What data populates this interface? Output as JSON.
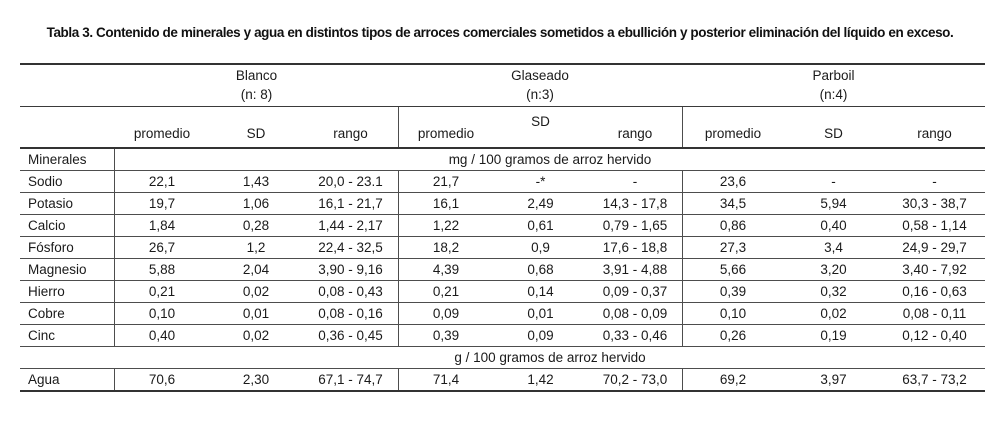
{
  "title": "Tabla 3. Contenido de minerales y agua en distintos tipos de arroces comerciales sometidos a ebullición y posterior eliminación del líquido en exceso.",
  "colors": {
    "background": "#ffffff",
    "text": "#1a1a1a",
    "rule_heavy": "#333333",
    "rule_light": "#4d4d4d"
  },
  "table": {
    "groups": [
      {
        "name": "Blanco",
        "n": "(n: 8)"
      },
      {
        "name": "Glaseado",
        "n": "(n:3)"
      },
      {
        "name": "Parboil",
        "n": "(n:4)"
      }
    ],
    "sub_headers": {
      "promedio": "promedio",
      "sd": "SD",
      "rango": "rango"
    },
    "row_header_column": "Minerales",
    "unit_mg": "mg / 100 gramos de arroz hervido",
    "unit_g": "g / 100 gramos de arroz hervido",
    "mineral_rows": [
      {
        "label": "Sodio",
        "cells": [
          "22,1",
          "1,43",
          "20,0 - 23.1",
          "21,7",
          "-*",
          "-",
          "23,6",
          "-",
          "-"
        ]
      },
      {
        "label": "Potasio",
        "cells": [
          "19,7",
          "1,06",
          "16,1 - 21,7",
          "16,1",
          "2,49",
          "14,3 - 17,8",
          "34,5",
          "5,94",
          "30,3 - 38,7"
        ]
      },
      {
        "label": "Calcio",
        "cells": [
          "1,84",
          "0,28",
          "1,44 - 2,17",
          "1,22",
          "0,61",
          "0,79 - 1,65",
          "0,86",
          "0,40",
          "0,58 - 1,14"
        ]
      },
      {
        "label": "Fósforo",
        "cells": [
          "26,7",
          "1,2",
          "22,4 - 32,5",
          "18,2",
          "0,9",
          "17,6 - 18,8",
          "27,3",
          "3,4",
          "24,9 - 29,7"
        ]
      },
      {
        "label": "Magnesio",
        "cells": [
          "5,88",
          "2,04",
          "3,90 - 9,16",
          "4,39",
          "0,68",
          "3,91 - 4,88",
          "5,66",
          "3,20",
          "3,40 - 7,92"
        ]
      },
      {
        "label": "Hierro",
        "cells": [
          "0,21",
          "0,02",
          "0,08 - 0,43",
          "0,21",
          "0,14",
          "0,09 - 0,37",
          "0,39",
          "0,32",
          "0,16 - 0,63"
        ]
      },
      {
        "label": "Cobre",
        "cells": [
          "0,10",
          "0,01",
          "0,08 - 0,16",
          "0,09",
          "0,01",
          "0,08 - 0,09",
          "0,10",
          "0,02",
          "0,08 - 0,11"
        ]
      },
      {
        "label": "Cinc",
        "cells": [
          "0,40",
          "0,02",
          "0,36 - 0,45",
          "0,39",
          "0,09",
          "0,33 - 0,46",
          "0,26",
          "0,19",
          "0,12 - 0,40"
        ]
      }
    ],
    "agua_row": {
      "label": "Agua",
      "cells": [
        "70,6",
        "2,30",
        "67,1 - 74,7",
        "71,4",
        "1,42",
        "70,2 - 73,0",
        "69,2",
        "3,97",
        "63,7 - 73,2"
      ]
    }
  }
}
